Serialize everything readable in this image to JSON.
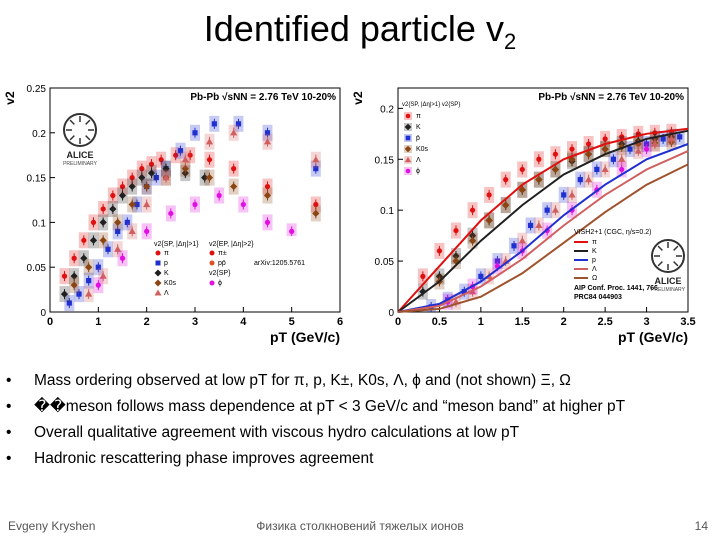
{
  "slide": {
    "title": "Identified particle v",
    "title_sub": "2",
    "footer_left": "Evgeny Kryshen",
    "footer_center": "Физика столкновений тяжелых ионов",
    "page_number": "14"
  },
  "bullets": [
    {
      "text": "Mass ordering observed at low pT for π, p, K±, K0s, Λ, ϕ and (not shown) Ξ, Ω"
    },
    {
      "text": "��meson follows mass dependence at pT < 3 GeV/c and “meson band” at higher pT"
    },
    {
      "text": "Overall qualitative agreement with viscous hydro calculations at low pT"
    },
    {
      "text": "Hadronic rescattering phase improves agreement"
    }
  ],
  "colors": {
    "pi": "#e01010",
    "p": "#2030d0",
    "K": "#202020",
    "phi": "#e010e0",
    "K0s": "#8b4513",
    "Lambda": "#d06060",
    "ppbar": "#e05020",
    "band": "#c8c8c8"
  },
  "chart_data": [
    {
      "type": "scatter",
      "ylabel": "v2",
      "xlabel": "pT (GeV/c)",
      "xlim": [
        0,
        6
      ],
      "ylim": [
        0,
        0.25
      ],
      "xticks": [
        "0",
        "1",
        "2",
        "3",
        "4",
        "5",
        "6"
      ],
      "yticks": [
        "0",
        "0.05",
        "0.1",
        "0.15",
        "0.2",
        "0.25"
      ],
      "header": "Pb-Pb √sNN = 2.76 TeV 10-20%",
      "reference": "arXiv:1205.5761",
      "logo_text": "ALICE",
      "logo_sub": "PRELIMINARY",
      "legend": [
        {
          "label": "v2{SP, |Δη|>1}",
          "group": "col1"
        },
        {
          "label": "π",
          "marker": "pi"
        },
        {
          "label": "p",
          "marker": "p"
        },
        {
          "label": "K",
          "marker": "K"
        },
        {
          "label": "K0s",
          "marker": "K0s"
        },
        {
          "label": "Λ",
          "marker": "Lambda"
        },
        {
          "label": "v2{EP, |Δη|>2}",
          "group": "col2"
        },
        {
          "label": "π±",
          "marker": "pi"
        },
        {
          "label": "pp̄",
          "marker": "ppbar"
        },
        {
          "label": "v2{SP}",
          "group": "col2b"
        },
        {
          "label": "ϕ",
          "marker": "phi"
        }
      ],
      "series": [
        {
          "name": "π",
          "key": "pi",
          "x": [
            0.3,
            0.5,
            0.7,
            0.9,
            1.1,
            1.3,
            1.5,
            1.7,
            1.9,
            2.1,
            2.3,
            2.6,
            2.9,
            3.3,
            3.8,
            4.5,
            5.5
          ],
          "y": [
            0.04,
            0.06,
            0.08,
            0.1,
            0.115,
            0.13,
            0.14,
            0.15,
            0.16,
            0.165,
            0.17,
            0.175,
            0.175,
            0.17,
            0.16,
            0.14,
            0.12
          ]
        },
        {
          "name": "p",
          "key": "p",
          "x": [
            0.4,
            0.6,
            0.8,
            1.0,
            1.2,
            1.4,
            1.6,
            1.8,
            2.0,
            2.2,
            2.4,
            2.7,
            3.0,
            3.4,
            3.9,
            4.5,
            5.5
          ],
          "y": [
            0.01,
            0.02,
            0.035,
            0.05,
            0.07,
            0.09,
            0.1,
            0.12,
            0.14,
            0.15,
            0.16,
            0.18,
            0.2,
            0.21,
            0.21,
            0.2,
            0.16
          ]
        },
        {
          "name": "K",
          "key": "K",
          "x": [
            0.3,
            0.5,
            0.7,
            0.9,
            1.1,
            1.3,
            1.5,
            1.7,
            1.9,
            2.1,
            2.4,
            2.8,
            3.2
          ],
          "y": [
            0.02,
            0.04,
            0.06,
            0.08,
            0.1,
            0.115,
            0.13,
            0.14,
            0.15,
            0.155,
            0.16,
            0.155,
            0.15
          ]
        },
        {
          "name": "K0s",
          "key": "K0s",
          "x": [
            0.5,
            0.8,
            1.1,
            1.4,
            1.7,
            2.0,
            2.4,
            2.8,
            3.3,
            3.8,
            4.5,
            5.5
          ],
          "y": [
            0.03,
            0.05,
            0.08,
            0.1,
            0.12,
            0.14,
            0.15,
            0.16,
            0.15,
            0.14,
            0.13,
            0.11
          ]
        },
        {
          "name": "Λ",
          "key": "Lambda",
          "x": [
            0.8,
            1.1,
            1.4,
            1.7,
            2.0,
            2.4,
            2.8,
            3.3,
            3.8,
            4.5,
            5.5
          ],
          "y": [
            0.02,
            0.04,
            0.07,
            0.09,
            0.12,
            0.15,
            0.17,
            0.19,
            0.2,
            0.19,
            0.17
          ]
        },
        {
          "name": "ϕ",
          "key": "phi",
          "x": [
            1.0,
            1.5,
            2.0,
            2.5,
            3.0,
            3.5,
            4.0,
            4.5,
            5.0
          ],
          "y": [
            0.03,
            0.06,
            0.09,
            0.11,
            0.12,
            0.13,
            0.12,
            0.1,
            0.09
          ]
        }
      ]
    },
    {
      "type": "scatter",
      "ylabel": "v2",
      "xlabel": "pT (GeV/c)",
      "xlim": [
        0,
        3.5
      ],
      "ylim": [
        0,
        0.22
      ],
      "xticks": [
        "0",
        "0.5",
        "1",
        "1.5",
        "2",
        "2.5",
        "3",
        "3.5"
      ],
      "yticks": [
        "0",
        "0.05",
        "0.1",
        "0.15",
        "0.2"
      ],
      "header": "Pb-Pb √sNN = 2.76 TeV 10-20%",
      "model": "VISH2+1 (CGC, η/s=0.2)",
      "reference": "AIP Conf. Proc. 1441, 766",
      "reference2": "PRC84 044903",
      "logo_text": "ALICE",
      "logo_sub": "PRELIMINARY",
      "legend_head": "v2{SP, |Δη|>1}  v2{SP}",
      "legend": [
        {
          "label": "π",
          "marker": "pi"
        },
        {
          "label": "K",
          "marker": "K"
        },
        {
          "label": "p̄",
          "marker": "p"
        },
        {
          "label": "K0s",
          "marker": "K0s"
        },
        {
          "label": "Λ",
          "marker": "Lambda"
        },
        {
          "label": "ϕ",
          "marker": "phi"
        }
      ],
      "model_legend": [
        "π",
        "K",
        "p",
        "Λ",
        "Ω"
      ],
      "series": [
        {
          "name": "π",
          "key": "pi",
          "x": [
            0.3,
            0.5,
            0.7,
            0.9,
            1.1,
            1.3,
            1.5,
            1.7,
            1.9,
            2.1,
            2.3,
            2.5,
            2.7,
            2.9,
            3.1,
            3.3
          ],
          "y": [
            0.035,
            0.06,
            0.08,
            0.1,
            0.115,
            0.13,
            0.14,
            0.15,
            0.155,
            0.16,
            0.165,
            0.17,
            0.172,
            0.175,
            0.176,
            0.177
          ]
        },
        {
          "name": "K",
          "key": "K",
          "x": [
            0.3,
            0.5,
            0.7,
            0.9,
            1.1,
            1.3,
            1.5,
            1.7,
            1.9,
            2.1,
            2.3,
            2.5,
            2.7,
            2.9,
            3.1,
            3.3
          ],
          "y": [
            0.02,
            0.035,
            0.055,
            0.075,
            0.09,
            0.105,
            0.12,
            0.13,
            0.14,
            0.148,
            0.155,
            0.16,
            0.165,
            0.168,
            0.17,
            0.172
          ]
        },
        {
          "name": "p",
          "key": "p",
          "x": [
            0.4,
            0.6,
            0.8,
            1.0,
            1.2,
            1.4,
            1.6,
            1.8,
            2.0,
            2.2,
            2.4,
            2.6,
            2.8,
            3.0,
            3.2,
            3.4
          ],
          "y": [
            0.005,
            0.012,
            0.02,
            0.035,
            0.05,
            0.065,
            0.085,
            0.1,
            0.115,
            0.13,
            0.14,
            0.15,
            0.16,
            0.165,
            0.17,
            0.172
          ]
        },
        {
          "name": "K0s",
          "key": "K0s",
          "x": [
            0.5,
            0.7,
            0.9,
            1.1,
            1.3,
            1.5,
            1.7,
            1.9,
            2.1,
            2.3,
            2.5,
            2.7,
            2.9,
            3.1,
            3.3
          ],
          "y": [
            0.03,
            0.05,
            0.07,
            0.09,
            0.105,
            0.12,
            0.13,
            0.14,
            0.15,
            0.155,
            0.16,
            0.162,
            0.165,
            0.166,
            0.167
          ]
        },
        {
          "name": "Λ",
          "key": "Lambda",
          "x": [
            0.7,
            0.9,
            1.1,
            1.3,
            1.5,
            1.7,
            1.9,
            2.1,
            2.3,
            2.5,
            2.7,
            2.9,
            3.1,
            3.3
          ],
          "y": [
            0.01,
            0.02,
            0.035,
            0.05,
            0.07,
            0.085,
            0.1,
            0.115,
            0.13,
            0.14,
            0.15,
            0.158,
            0.165,
            0.17
          ]
        },
        {
          "name": "ϕ",
          "key": "phi",
          "x": [
            0.6,
            0.9,
            1.2,
            1.5,
            1.8,
            2.1,
            2.4,
            2.7,
            3.0
          ],
          "y": [
            0.01,
            0.025,
            0.045,
            0.06,
            0.08,
            0.1,
            0.12,
            0.14,
            0.16
          ]
        }
      ],
      "model_curves": [
        {
          "name": "π",
          "key": "pi",
          "x": [
            0,
            0.5,
            1,
            1.5,
            2,
            2.5,
            3,
            3.5
          ],
          "y": [
            0,
            0.045,
            0.09,
            0.125,
            0.15,
            0.165,
            0.175,
            0.18
          ]
        },
        {
          "name": "K",
          "key": "K",
          "x": [
            0,
            0.5,
            1,
            1.5,
            2,
            2.5,
            3,
            3.5
          ],
          "y": [
            0,
            0.03,
            0.07,
            0.105,
            0.135,
            0.155,
            0.17,
            0.178
          ]
        },
        {
          "name": "p",
          "key": "p",
          "x": [
            0,
            0.5,
            1,
            1.5,
            2,
            2.5,
            3,
            3.5
          ],
          "y": [
            0,
            0.008,
            0.03,
            0.06,
            0.095,
            0.125,
            0.15,
            0.165
          ]
        },
        {
          "name": "Λ",
          "key": "Lambda",
          "x": [
            0,
            0.5,
            1,
            1.5,
            2,
            2.5,
            3,
            3.5
          ],
          "y": [
            0,
            0.006,
            0.025,
            0.052,
            0.085,
            0.115,
            0.14,
            0.158
          ]
        },
        {
          "name": "Ω",
          "key": "Omega",
          "x": [
            0,
            0.5,
            1,
            1.5,
            2,
            2.5,
            3,
            3.5
          ],
          "y": [
            0,
            0.003,
            0.015,
            0.038,
            0.068,
            0.098,
            0.125,
            0.145
          ]
        }
      ]
    }
  ]
}
